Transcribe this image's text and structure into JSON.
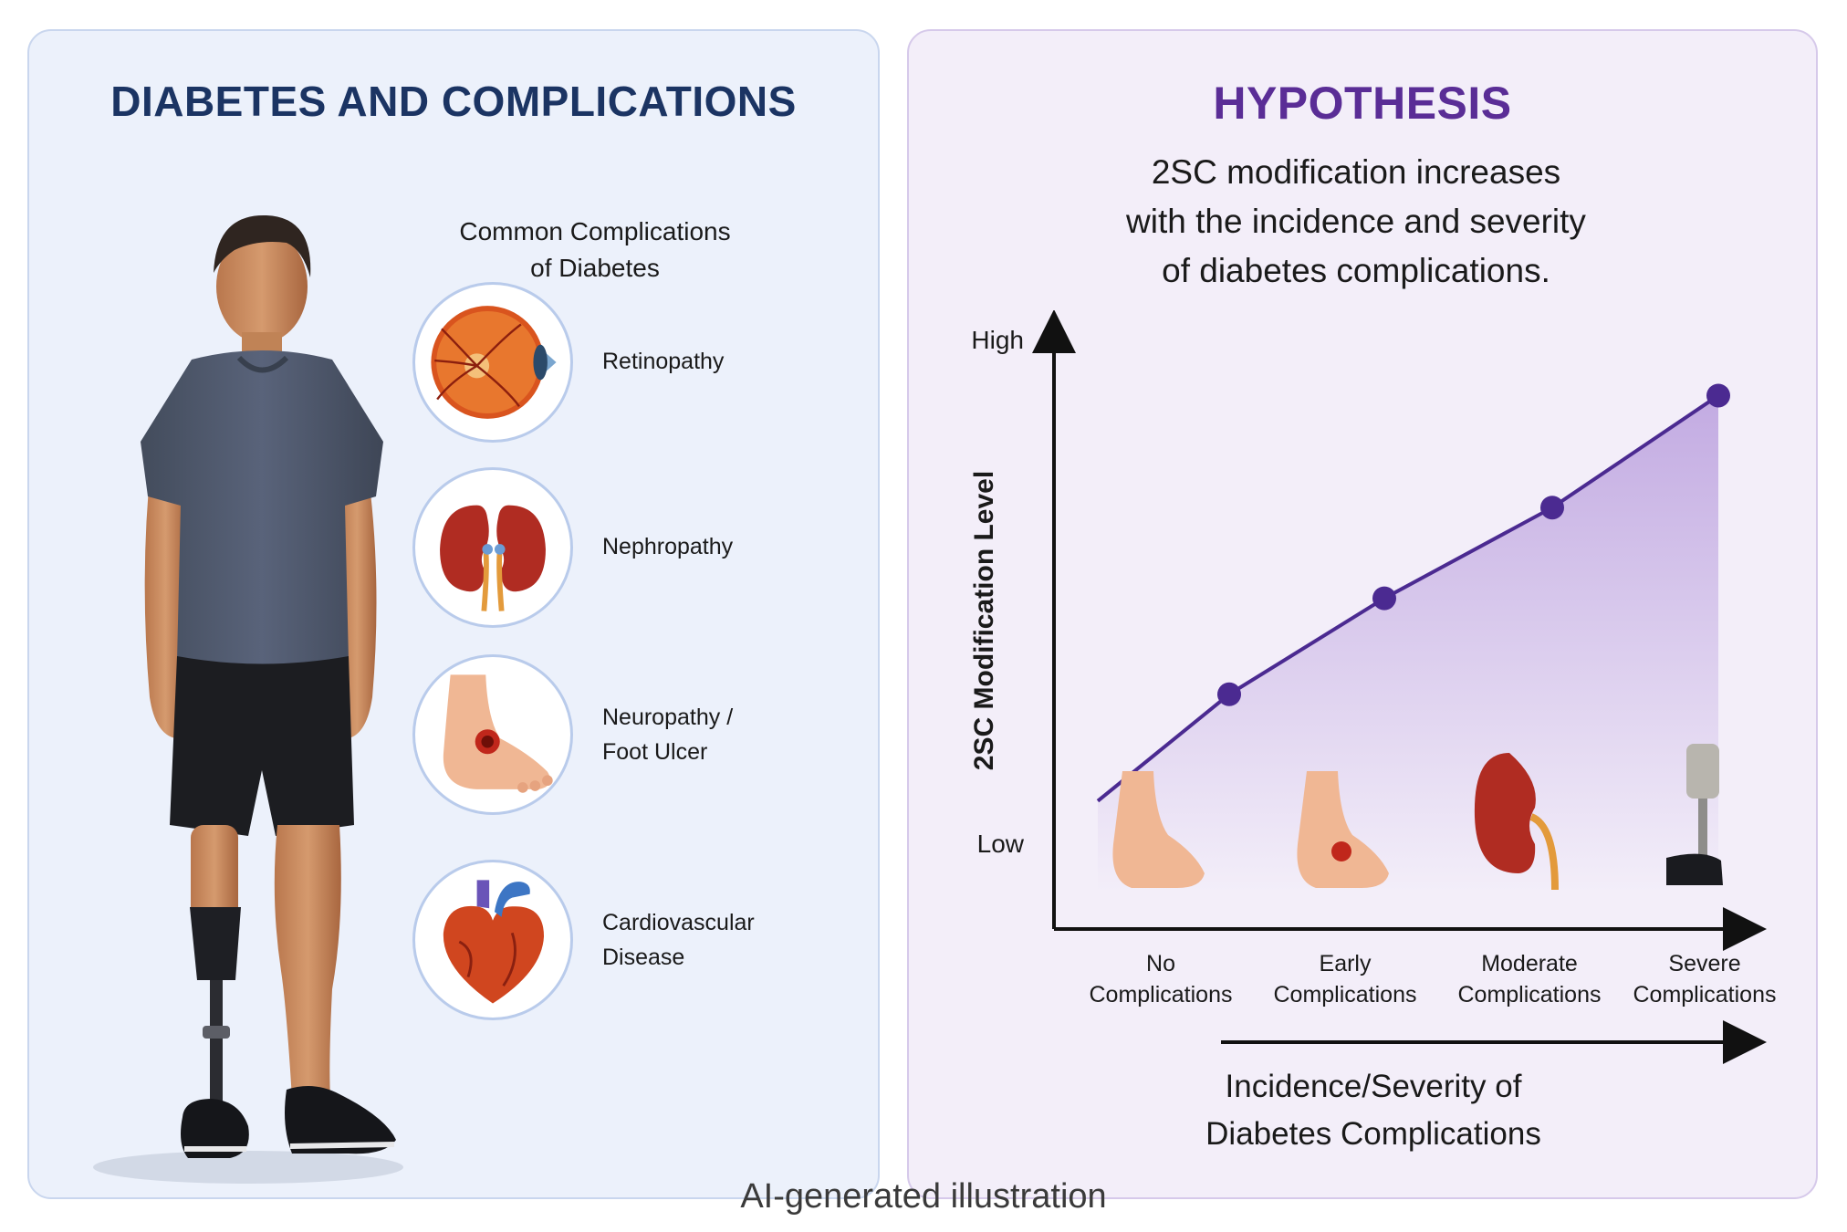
{
  "left_panel": {
    "title": "DIABETES AND COMPLICATIONS",
    "subtitle_lines": [
      "Common Complications",
      "of Diabetes"
    ],
    "complications": [
      {
        "lines": [
          "Retinopathy"
        ],
        "icon": "eye-icon"
      },
      {
        "lines": [
          "Nephropathy"
        ],
        "icon": "kidney-icon"
      },
      {
        "lines": [
          "Neuropathy /",
          "Foot Ulcer"
        ],
        "icon": "foot-ulcer-icon"
      },
      {
        "lines": [
          "Cardiovascular",
          "Disease"
        ],
        "icon": "heart-icon"
      }
    ]
  },
  "right_panel": {
    "title": "HYPOTHESIS",
    "hypothesis_lines": [
      "2SC modification increases",
      "with the incidence and severity",
      "of diabetes complications."
    ]
  },
  "chart_data": {
    "type": "line",
    "ylabel": "2SC Modification Level",
    "y_ticks": [
      "High",
      "Low"
    ],
    "categories": [
      [
        "No",
        "Complications"
      ],
      [
        "Early",
        "Complications"
      ],
      [
        "Moderate",
        "Complications"
      ],
      [
        "Severe",
        "Complications"
      ]
    ],
    "category_icons": [
      "healthy-foot-icon",
      "foot-ulcer-icon",
      "kidney-icon",
      "prosthetic-leg-icon"
    ],
    "x_arrow_label": [
      "Incidence/Severity of",
      "Diabetes Complications"
    ],
    "values": [
      0.44,
      0.62,
      0.79,
      1.0
    ],
    "line_start_value": 0.24,
    "ylim": [
      0,
      1.1
    ],
    "line_color": "#4b2a91",
    "fill_color": "#9b74cf"
  },
  "footer": {
    "text": "AI-generated illustration"
  }
}
